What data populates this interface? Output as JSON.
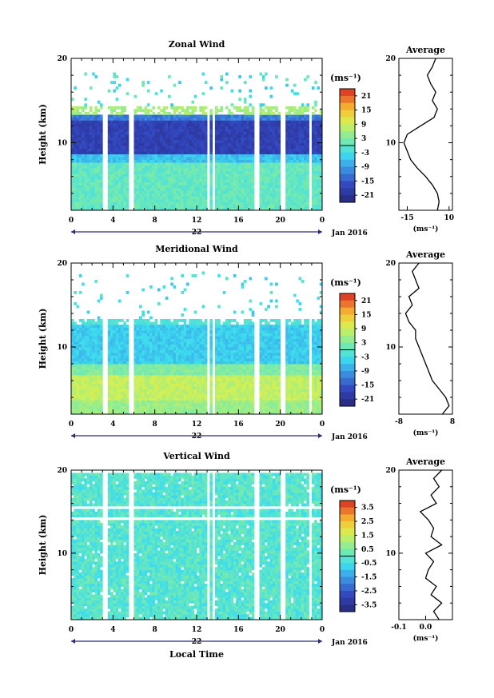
{
  "figure": {
    "x_axis_label": "Local Time",
    "date_label": "Jan 2016",
    "unit_label": "(ms⁻¹)",
    "y_label": "Height (km)",
    "average_title": "Average"
  },
  "chart_data": [
    {
      "type": "heatmap",
      "title": "Zonal Wind",
      "ylabel": "Height (km)",
      "xlabel": "",
      "x_ticks": [
        "0",
        "4",
        "8",
        "12",
        "16",
        "20",
        "0"
      ],
      "day_label": "22",
      "y_ticks": [
        "10",
        "20"
      ],
      "ylim": [
        2,
        20
      ],
      "xlim": [
        0,
        24
      ],
      "colorbar": {
        "unit": "(ms⁻¹)",
        "ticks": [
          "21",
          "15",
          "9",
          "3",
          "-3",
          "-9",
          "-15",
          "-21"
        ],
        "range": [
          -24,
          24
        ]
      },
      "profile": {
        "title": "Average",
        "x_ticks": [
          "-15",
          "10"
        ],
        "xlim": [
          -20,
          12
        ],
        "unit": "(ms⁻¹)",
        "heights": [
          2,
          3,
          4,
          5,
          6,
          7,
          8,
          9,
          10,
          11,
          12,
          13,
          14,
          15,
          16,
          17,
          18,
          19,
          20
        ],
        "values": [
          3,
          4,
          3,
          0,
          -4,
          -9,
          -13,
          -15,
          -17,
          -15,
          -7,
          1,
          3,
          0,
          2,
          -1,
          -3,
          0,
          2
        ]
      }
    },
    {
      "type": "heatmap",
      "title": "Meridional Wind",
      "ylabel": "Height (km)",
      "xlabel": "",
      "x_ticks": [
        "0",
        "4",
        "8",
        "12",
        "16",
        "20",
        "0"
      ],
      "day_label": "22",
      "y_ticks": [
        "10",
        "20"
      ],
      "ylim": [
        2,
        20
      ],
      "xlim": [
        0,
        24
      ],
      "colorbar": {
        "unit": "(ms⁻¹)",
        "ticks": [
          "21",
          "15",
          "9",
          "3",
          "-3",
          "-9",
          "-15",
          "-21"
        ],
        "range": [
          -24,
          24
        ]
      },
      "profile": {
        "title": "Average",
        "x_ticks": [
          "-8",
          "8"
        ],
        "xlim": [
          -8,
          8
        ],
        "unit": "(ms⁻¹)",
        "heights": [
          2,
          3,
          4,
          5,
          6,
          7,
          8,
          9,
          10,
          11,
          12,
          13,
          14,
          15,
          16,
          17,
          18,
          19,
          20
        ],
        "values": [
          5,
          7,
          6,
          4,
          2,
          1,
          0,
          -1,
          -2,
          -3,
          -3,
          -5,
          -6,
          -4,
          -5,
          -2,
          -3,
          -4,
          -2
        ]
      }
    },
    {
      "type": "heatmap",
      "title": "Vertical Wind",
      "ylabel": "Height (km)",
      "xlabel": "Local Time",
      "x_ticks": [
        "0",
        "4",
        "8",
        "12",
        "16",
        "20",
        "0"
      ],
      "day_label": "22",
      "y_ticks": [
        "10",
        "20"
      ],
      "ylim": [
        2,
        20
      ],
      "xlim": [
        0,
        24
      ],
      "colorbar": {
        "unit": "(ms⁻¹)",
        "ticks": [
          "3.5",
          "2.5",
          "1.5",
          "0.5",
          "-0.5",
          "-1.5",
          "-2.5",
          "-3.5"
        ],
        "range": [
          -4,
          4
        ]
      },
      "profile": {
        "title": "Average",
        "x_ticks": [
          "-0.1",
          "0.0"
        ],
        "xlim": [
          -0.1,
          0.1
        ],
        "unit": "(ms⁻¹)",
        "heights": [
          2,
          3,
          4,
          5,
          6,
          7,
          8,
          9,
          10,
          11,
          12,
          13,
          14,
          15,
          16,
          17,
          18,
          19,
          20
        ],
        "values": [
          0.05,
          0.03,
          0.06,
          0.02,
          0.04,
          0.0,
          0.01,
          0.03,
          0.0,
          0.06,
          0.02,
          0.03,
          0.01,
          -0.02,
          0.04,
          0.02,
          0.05,
          0.03,
          0.06
        ]
      }
    }
  ]
}
